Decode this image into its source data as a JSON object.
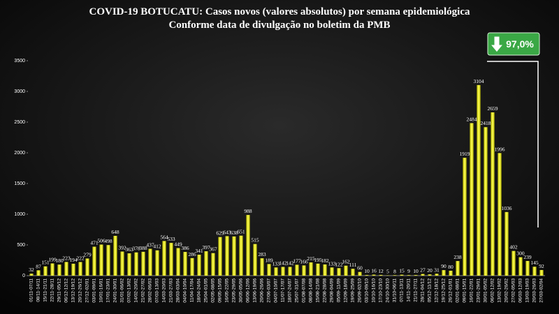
{
  "chart_data": {
    "type": "bar",
    "title": "COVID-19 BOTUCATU: Casos novos (valores absolutos) por semana epidemiológica",
    "subtitle": "Conforme data de divulgação no boletim da PMB",
    "annotation": "97,0%",
    "color": "#f2f230",
    "ylim": [
      0,
      3500
    ],
    "yticks": [
      0,
      500,
      1000,
      1500,
      2000,
      2500,
      3000,
      3500
    ],
    "categories": [
      "01/11-07/11",
      "08/11-14/11",
      "15/11-21/11",
      "22/11-28/11",
      "29/11-05/12",
      "06/12-12/12",
      "13/12-19/12",
      "20/12-26/12",
      "27/12-02/01",
      "03/01-09/01",
      "10/01-16/01",
      "17/01-23/01",
      "24/01-30/01",
      "31/01-06/02",
      "07/02-13/02",
      "14/02-20/02",
      "21/02-27/02",
      "28/02-06/03",
      "07/03-13/03",
      "14/03-20/03",
      "21/03-27/03",
      "28/03-03/04",
      "04/04-10/04",
      "11/04-17/04",
      "18/04-24/04",
      "25/04-01/05",
      "02/05-08/05",
      "09/05-15/05",
      "16/05-22/05",
      "23/05-29/05",
      "30/05-05/06",
      "06/06-12/06",
      "13/06-19/06",
      "20/06-26/06",
      "27/06-03/07",
      "04/07-10/07",
      "11/07-17/07",
      "18/07-24/07",
      "25/07-31/07",
      "01/08-07/08",
      "08/08-14/08",
      "15/08-21/08",
      "22/08-28/08",
      "29/08-04/09",
      "05/09-11/09",
      "12/09-18/09",
      "19/09-25/09",
      "26/09-02/10",
      "03/10-09/10",
      "10/10-16/10",
      "17/10-23/10",
      "24/10-30/10",
      "31/10-06/11",
      "07/11-13/11",
      "14/11-20/11",
      "21/11-27/11",
      "28/11-04/12",
      "05/12-11/12",
      "12/12-18/12",
      "19/12-25/12",
      "26/12-01/01",
      "02/01-08/01",
      "09/01-15/01",
      "16/01-22/01",
      "23/01-29/01",
      "30/01-05/02",
      "06/02-12/02",
      "13/02-19/02",
      "20/02-26/02",
      "27/02-05/03",
      "06/03-12/03",
      "13/03-19/03",
      "20/03-26/03",
      "27/03-02/04"
    ],
    "values": [
      32,
      87,
      151,
      199,
      180,
      223,
      194,
      222,
      279,
      471,
      506,
      498,
      648,
      392,
      363,
      378,
      388,
      437,
      412,
      564,
      533,
      449,
      386,
      286,
      341,
      397,
      367,
      629,
      643,
      638,
      651,
      988,
      515,
      283,
      189,
      133,
      142,
      142,
      177,
      166,
      215,
      195,
      182,
      133,
      122,
      162,
      111,
      60,
      10,
      16,
      12,
      5,
      8,
      15,
      9,
      10,
      27,
      20,
      31,
      90,
      80,
      238,
      1919,
      2484,
      3104,
      2418,
      2659,
      1996,
      1036,
      402,
      300,
      239,
      145,
      92
    ]
  }
}
